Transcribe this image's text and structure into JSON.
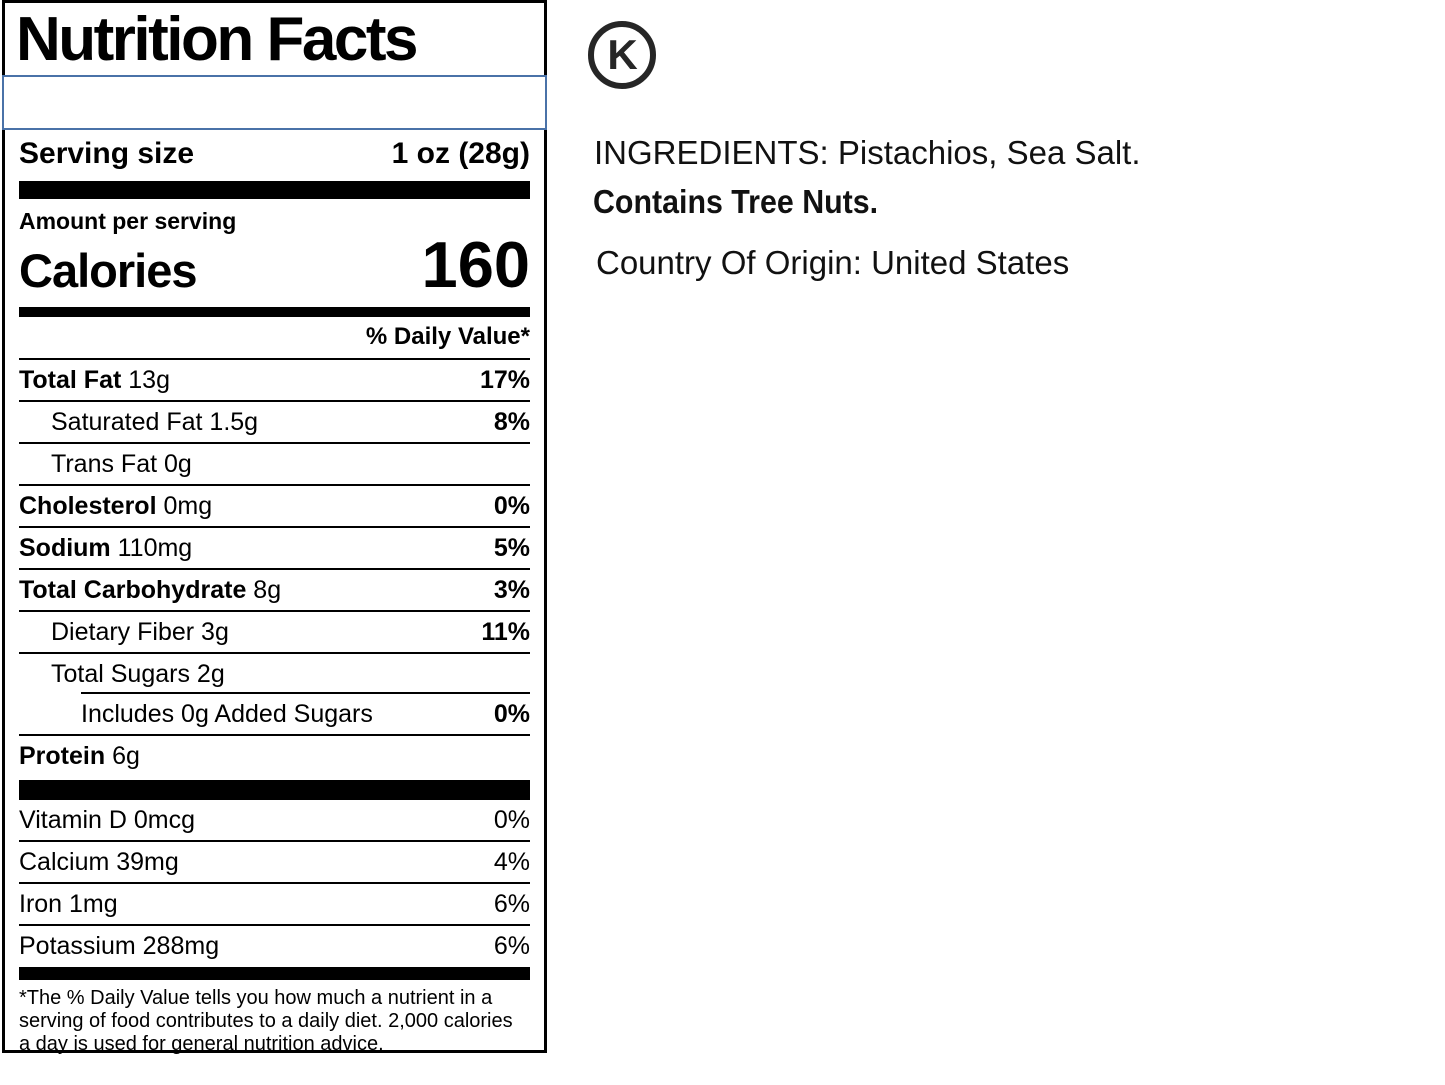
{
  "label": {
    "title": "Nutrition Facts",
    "servings_input": {
      "value": "",
      "placeholder": ""
    },
    "serving_size": {
      "label": "Serving size",
      "value": "1 oz (28g)"
    },
    "amount_per_serving": "Amount per serving",
    "calories": {
      "label": "Calories",
      "value": "160"
    },
    "daily_value_header": "% Daily Value*",
    "rows": [
      {
        "name": "Total Fat",
        "amount": "13g",
        "dv": "17%",
        "bold_name": true,
        "dv_bold": true,
        "indent": 0,
        "rule_below": "full"
      },
      {
        "name": "Saturated Fat",
        "amount": "1.5g",
        "dv": "8%",
        "bold_name": false,
        "dv_bold": true,
        "indent": 1,
        "rule_below": "full"
      },
      {
        "name": "Trans Fat",
        "amount": "0g",
        "dv": "",
        "bold_name": false,
        "dv_bold": false,
        "indent": 1,
        "rule_below": "full"
      },
      {
        "name": "Cholesterol",
        "amount": "0mg",
        "dv": "0%",
        "bold_name": true,
        "dv_bold": true,
        "indent": 0,
        "rule_below": "full"
      },
      {
        "name": "Sodium",
        "amount": "110mg",
        "dv": "5%",
        "bold_name": true,
        "dv_bold": true,
        "indent": 0,
        "rule_below": "full"
      },
      {
        "name": "Total Carbohydrate",
        "amount": "8g",
        "dv": "3%",
        "bold_name": true,
        "dv_bold": true,
        "indent": 0,
        "rule_below": "full"
      },
      {
        "name": "Dietary Fiber",
        "amount": "3g",
        "dv": "11%",
        "bold_name": false,
        "dv_bold": true,
        "indent": 1,
        "rule_below": "full"
      },
      {
        "name": "Total Sugars",
        "amount": "2g",
        "dv": "",
        "bold_name": false,
        "dv_bold": false,
        "indent": 1,
        "rule_below": "indent"
      },
      {
        "name": "Includes 0g Added Sugars",
        "amount": "",
        "dv": "0%",
        "bold_name": false,
        "dv_bold": true,
        "indent": 2,
        "rule_below": "full"
      },
      {
        "name": "Protein",
        "amount": "6g",
        "dv": "",
        "bold_name": true,
        "dv_bold": false,
        "indent": 0,
        "rule_below": "none"
      }
    ],
    "vitamins": [
      {
        "name": "Vitamin D",
        "amount": "0mcg",
        "dv": "0%",
        "bold_name": false,
        "dv_bold": false,
        "indent": 0,
        "rule_below": "full"
      },
      {
        "name": "Calcium",
        "amount": "39mg",
        "dv": "4%",
        "bold_name": false,
        "dv_bold": false,
        "indent": 0,
        "rule_below": "full"
      },
      {
        "name": "Iron",
        "amount": "1mg",
        "dv": "6%",
        "bold_name": false,
        "dv_bold": false,
        "indent": 0,
        "rule_below": "full"
      },
      {
        "name": "Potassium",
        "amount": "288mg",
        "dv": "6%",
        "bold_name": false,
        "dv_bold": false,
        "indent": 0,
        "rule_below": "none"
      }
    ],
    "footnote": "*The % Daily Value tells you how much a nutrient in a serving of food contributes to a daily diet. 2,000 calories a day is used for general nutrition advice."
  },
  "side": {
    "kosher_letter": "K",
    "ingredients": "INGREDIENTS: Pistachios, Sea Salt.",
    "allergen": "Contains Tree Nuts.",
    "origin": "Country Of Origin: United States"
  },
  "colors": {
    "ink": "#000000",
    "selection_border": "#4a72a8"
  }
}
